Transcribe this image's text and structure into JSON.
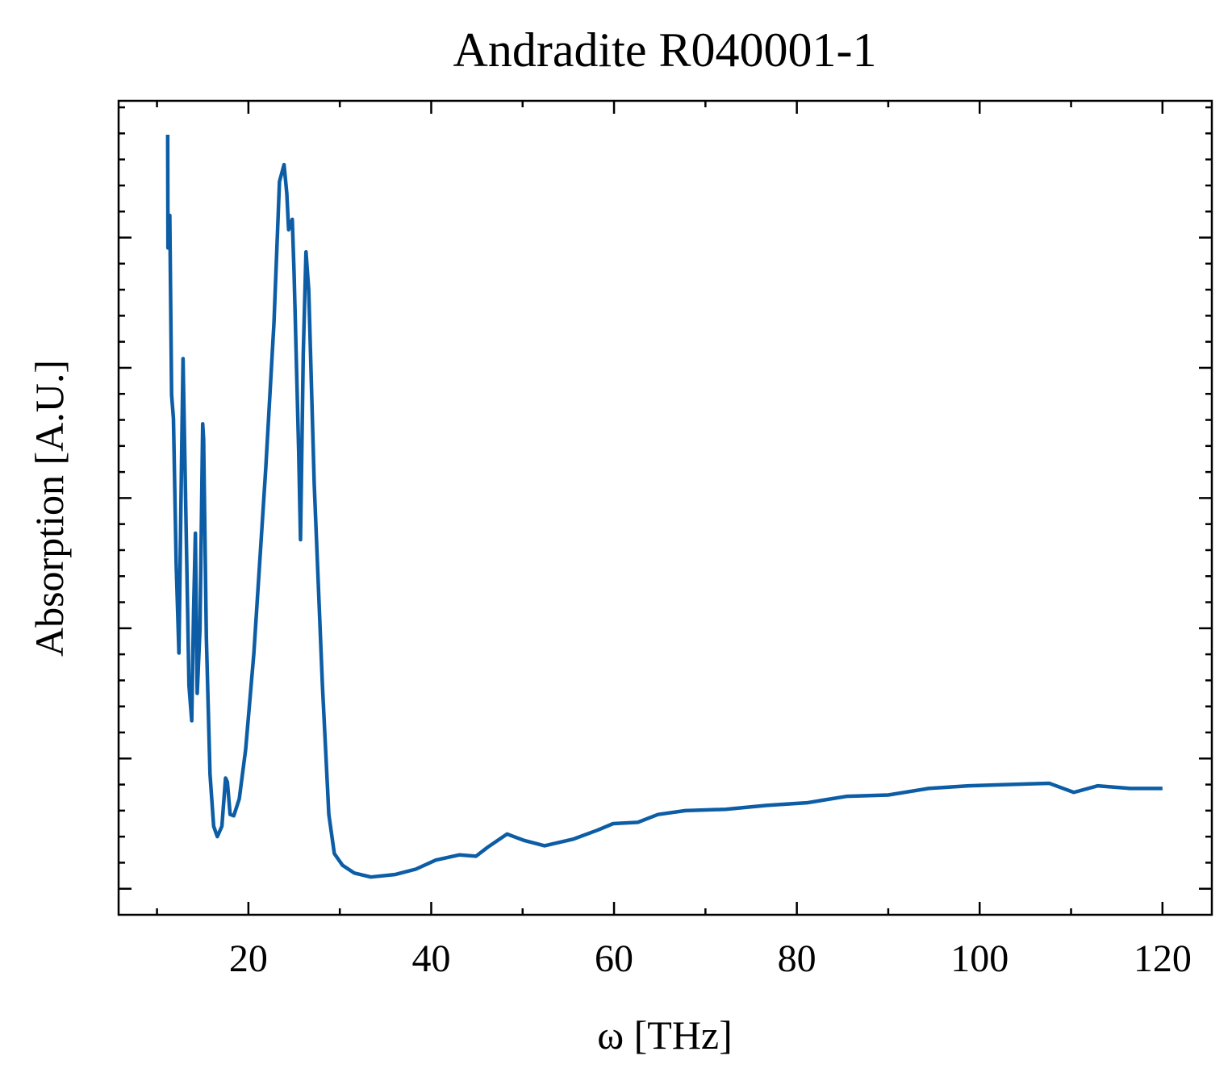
{
  "chart_data": {
    "type": "line",
    "title": "Andradite R040001-1",
    "x_label": "ω [THz]",
    "y_label": "Absorption [A.U.]",
    "xlim": [
      5.8,
      125.4
    ],
    "ylim": [
      -0.2,
      6.05
    ],
    "xticks": [
      20,
      40,
      60,
      80,
      100,
      120
    ],
    "xminorticks": [
      10,
      30,
      50,
      70,
      90,
      110
    ],
    "yticks": [
      0,
      1,
      2,
      3,
      4,
      5
    ],
    "yminorticks": [
      0.2,
      0.4,
      0.6,
      0.8,
      1.2,
      1.4,
      1.6,
      1.8,
      2.2,
      2.4,
      2.6,
      2.8,
      3.2,
      3.4,
      3.6,
      3.8,
      4.2,
      4.4,
      4.6,
      4.8,
      5.2,
      5.4,
      5.6,
      5.8,
      6.0
    ],
    "series": [
      {
        "color": "#0c5da5",
        "x": [
          11.17,
          11.2,
          11.4,
          11.6,
          11.8,
          12.1,
          12.4,
          12.7,
          12.85,
          13.1,
          13.5,
          13.8,
          14.0,
          14.2,
          14.4,
          14.7,
          15.0,
          15.1,
          15.4,
          15.8,
          16.2,
          16.6,
          17.1,
          17.5,
          17.7,
          18.0,
          18.4,
          19.0,
          19.7,
          20.6,
          21.9,
          22.8,
          23.4,
          23.9,
          24.2,
          24.4,
          24.8,
          25.0,
          25.5,
          25.7,
          26.0,
          26.3,
          26.6,
          27.2,
          28.1,
          28.8,
          29.4,
          30.3,
          31.6,
          33.4,
          36.1,
          38.3,
          40.5,
          43.1,
          44.9,
          46.2,
          48.3,
          50.2,
          52.4,
          55.5,
          58.2,
          59.9,
          62.6,
          64.8,
          67.8,
          72.2,
          76.7,
          81.1,
          85.5,
          90.0,
          94.4,
          98.8,
          103.2,
          107.6,
          110.3,
          112.9,
          116.5,
          120.0
        ],
        "values": [
          5.79,
          4.92,
          5.17,
          3.79,
          3.61,
          2.49,
          1.81,
          3.36,
          4.07,
          3.11,
          1.56,
          1.29,
          2.12,
          2.73,
          1.5,
          1.99,
          3.57,
          3.45,
          1.93,
          0.88,
          0.48,
          0.4,
          0.48,
          0.85,
          0.82,
          0.57,
          0.56,
          0.69,
          1.07,
          1.81,
          3.23,
          4.35,
          5.43,
          5.56,
          5.34,
          5.06,
          5.14,
          4.72,
          3.36,
          2.68,
          4.1,
          4.89,
          4.6,
          3.11,
          1.56,
          0.57,
          0.27,
          0.18,
          0.12,
          0.09,
          0.11,
          0.15,
          0.22,
          0.26,
          0.25,
          0.32,
          0.42,
          0.37,
          0.33,
          0.38,
          0.45,
          0.5,
          0.51,
          0.57,
          0.6,
          0.61,
          0.64,
          0.66,
          0.71,
          0.72,
          0.77,
          0.79,
          0.8,
          0.81,
          0.74,
          0.79,
          0.77,
          0.77
        ]
      }
    ]
  }
}
